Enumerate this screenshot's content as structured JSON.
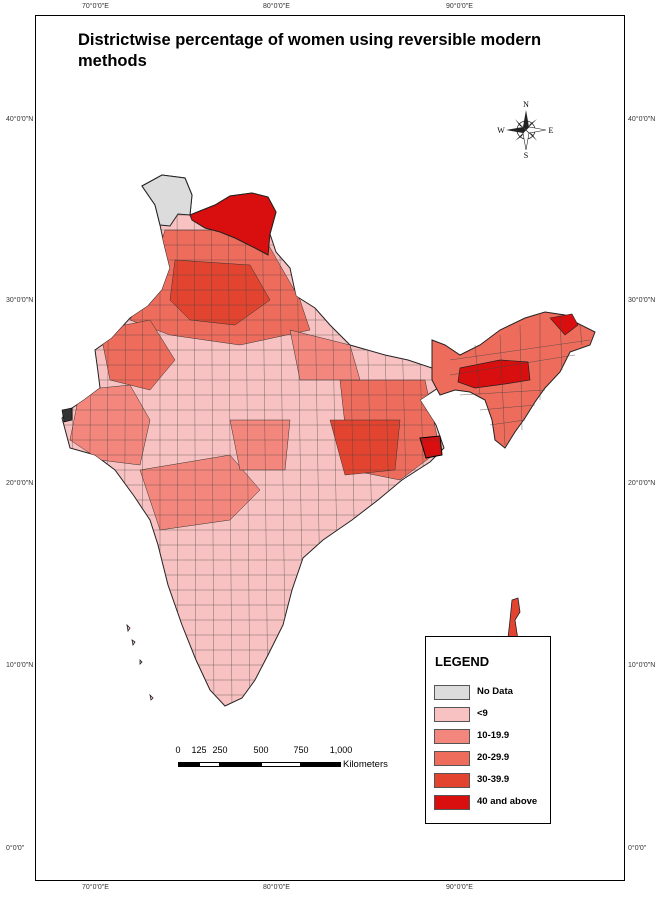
{
  "title": "Districtwise percentage of women using reversible modern methods",
  "longitude_labels": [
    "70°0'0\"E",
    "80°0'0\"E",
    "90°0'0\"E"
  ],
  "latitude_labels": [
    "40°0'0\"N",
    "30°0'0\"N",
    "20°0'0\"N",
    "10°0'0\"N",
    "0°0'0\""
  ],
  "north_arrow": {
    "icon": "compass-rose-icon",
    "n": "N",
    "s": "S",
    "e": "E",
    "w": "W"
  },
  "legend": {
    "title": "LEGEND",
    "items": [
      {
        "label": "No Data",
        "color": "#dcdcdc"
      },
      {
        "label": "<9",
        "color": "#f9c2c2"
      },
      {
        "label": "10-19.9",
        "color": "#f4877d"
      },
      {
        "label": "20-29.9",
        "color": "#ee6c5c"
      },
      {
        "label": "30-39.9",
        "color": "#e2442f"
      },
      {
        "label": "40 and above",
        "color": "#d90e0e"
      }
    ]
  },
  "scale_bar": {
    "labels": [
      "0",
      "125",
      "250",
      "500",
      "750",
      "1,000"
    ],
    "unit": "Kilometers"
  }
}
